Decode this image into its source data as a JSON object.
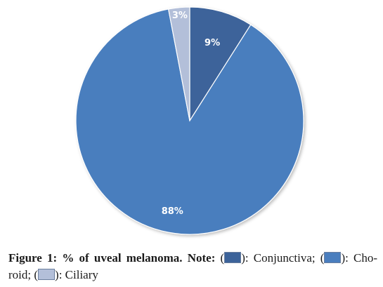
{
  "chart_data": {
    "type": "pie",
    "slices": [
      {
        "name": "Conjunctiva",
        "value": 9,
        "label": "9%",
        "color": "#3c639a"
      },
      {
        "name": "Choroid",
        "value": 88,
        "label": "88%",
        "color": "#4a7ebe"
      },
      {
        "name": "Ciliary",
        "value": 3,
        "label": "3%",
        "color": "#b3bfd9"
      }
    ],
    "start_angle_deg": 0,
    "direction": "clockwise",
    "title": ""
  },
  "caption": {
    "figure_label": "Figure 1:",
    "title": "% of uveal melanoma. Note:",
    "items": [
      {
        "open": "(",
        "close": "): Conjunctiva;",
        "swatch_color": "#3c639a"
      },
      {
        "open": "(",
        "close": "): Cho-roid;",
        "swatch_color": "#4a7ebe"
      },
      {
        "open": "(",
        "close": "): Ciliary",
        "swatch_color": "#b3bfd9"
      }
    ]
  }
}
